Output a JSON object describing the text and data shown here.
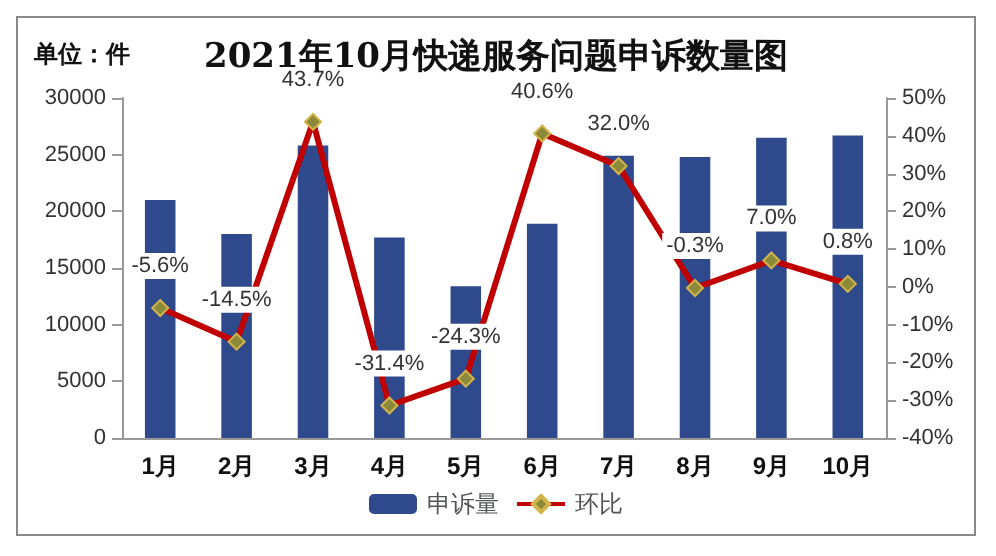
{
  "chart_data": {
    "type": "bar",
    "title": "2021年10月快递服务问题申诉数量图",
    "annotations": [
      "单位：件"
    ],
    "categories": [
      "1月",
      "2月",
      "3月",
      "4月",
      "5月",
      "6月",
      "7月",
      "8月",
      "9月",
      "10月"
    ],
    "series": [
      {
        "name": "申诉量",
        "color": "#2e4a8c",
        "values": [
          21000,
          18000,
          25800,
          17700,
          13400,
          18900,
          24900,
          24800,
          26500,
          26700
        ]
      },
      {
        "name": "环比",
        "type": "line",
        "axis": "y2",
        "color": "#c00000",
        "marker": "diamond",
        "values": [
          -5.6,
          -14.5,
          43.7,
          -31.4,
          -24.3,
          40.6,
          32.0,
          -0.3,
          7.0,
          0.8
        ],
        "value_labels": [
          "-5.6%",
          "-14.5%",
          "43.7%",
          "-31.4%",
          "-24.3%",
          "40.6%",
          "32.0%",
          "-0.3%",
          "7.0%",
          "0.8%"
        ]
      }
    ],
    "ylim": [
      0,
      30000
    ],
    "yticks": [
      0,
      5000,
      10000,
      15000,
      20000,
      25000,
      30000
    ],
    "y2lim": [
      -40,
      50
    ],
    "y2ticks": [
      {
        "value": -40,
        "label": "-40%"
      },
      {
        "value": -30,
        "label": "-30%"
      },
      {
        "value": -20,
        "label": "-20%"
      },
      {
        "value": -10,
        "label": "-10%"
      },
      {
        "value": 0,
        "label": "0%"
      },
      {
        "value": 10,
        "label": "10%"
      },
      {
        "value": 20,
        "label": "20%"
      },
      {
        "value": 30,
        "label": "30%"
      },
      {
        "value": 40,
        "label": "40%"
      },
      {
        "value": 50,
        "label": "50%"
      }
    ],
    "legend": "bottom",
    "grid": false
  }
}
